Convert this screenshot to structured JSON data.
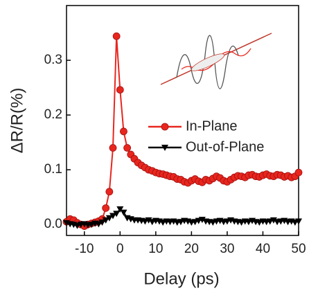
{
  "chart_data": {
    "type": "line",
    "x_label": "Delay (ps)",
    "y_label": "ΔR/R(%)",
    "x": [
      -15,
      -14,
      -13,
      -12,
      -11,
      -10,
      -9,
      -8,
      -7,
      -6,
      -5,
      -4,
      -3,
      -2,
      -1,
      0,
      1,
      2,
      3,
      4,
      5,
      6,
      7,
      8,
      9,
      10,
      11,
      12,
      13,
      14,
      15,
      16,
      17,
      18,
      19,
      20,
      21,
      22,
      23,
      24,
      25,
      26,
      27,
      28,
      29,
      30,
      31,
      32,
      33,
      34,
      35,
      36,
      37,
      38,
      39,
      40,
      41,
      42,
      43,
      44,
      45,
      46,
      47,
      48,
      49,
      50
    ],
    "series": [
      {
        "name": "In-Plane",
        "color": "#e8261e",
        "marker": "circle",
        "values": [
          0.005,
          0.01,
          0.008,
          0.003,
          0.0,
          -0.003,
          0.0,
          0.002,
          0.004,
          0.006,
          0.01,
          0.03,
          0.06,
          0.14,
          0.344,
          0.246,
          0.17,
          0.14,
          0.128,
          0.12,
          0.113,
          0.108,
          0.104,
          0.1,
          0.098,
          0.095,
          0.093,
          0.092,
          0.09,
          0.088,
          0.087,
          0.083,
          0.082,
          0.078,
          0.076,
          0.08,
          0.083,
          0.079,
          0.077,
          0.082,
          0.08,
          0.084,
          0.088,
          0.085,
          0.08,
          0.078,
          0.082,
          0.086,
          0.089,
          0.088,
          0.086,
          0.09,
          0.091,
          0.088,
          0.087,
          0.09,
          0.092,
          0.089,
          0.088,
          0.091,
          0.09,
          0.087,
          0.089,
          0.086,
          0.088,
          0.095
        ]
      },
      {
        "name": "Out-of-Plane",
        "color": "#000000",
        "marker": "triangle-down",
        "values": [
          0.003,
          0.001,
          0.0,
          -0.002,
          0.0,
          0.001,
          -0.001,
          0.0,
          0.002,
          0.001,
          0.004,
          0.008,
          0.012,
          0.016,
          0.02,
          0.028,
          0.022,
          0.012,
          0.01,
          0.008,
          0.008,
          0.007,
          0.006,
          0.008,
          0.005,
          0.007,
          0.006,
          0.004,
          0.006,
          0.005,
          0.006,
          0.004,
          0.005,
          0.007,
          0.006,
          0.004,
          0.005,
          0.007,
          0.009,
          0.006,
          0.005,
          0.004,
          0.006,
          0.007,
          0.005,
          0.006,
          0.008,
          0.006,
          0.005,
          0.004,
          0.006,
          0.005,
          0.007,
          0.005,
          0.004,
          0.006,
          0.005,
          0.006,
          0.008,
          0.005,
          0.006,
          0.007,
          0.005,
          0.006,
          0.004,
          0.006
        ]
      }
    ],
    "xlim": [
      -15,
      50
    ],
    "xticks": [
      -10,
      0,
      10,
      20,
      30,
      40,
      50
    ],
    "ylim": [
      -0.02,
      0.4
    ],
    "yticks": [
      {
        "value": 0,
        "label": "0.0"
      },
      0.1,
      0.2,
      0.3
    ],
    "grid": false,
    "legend": "center right"
  }
}
